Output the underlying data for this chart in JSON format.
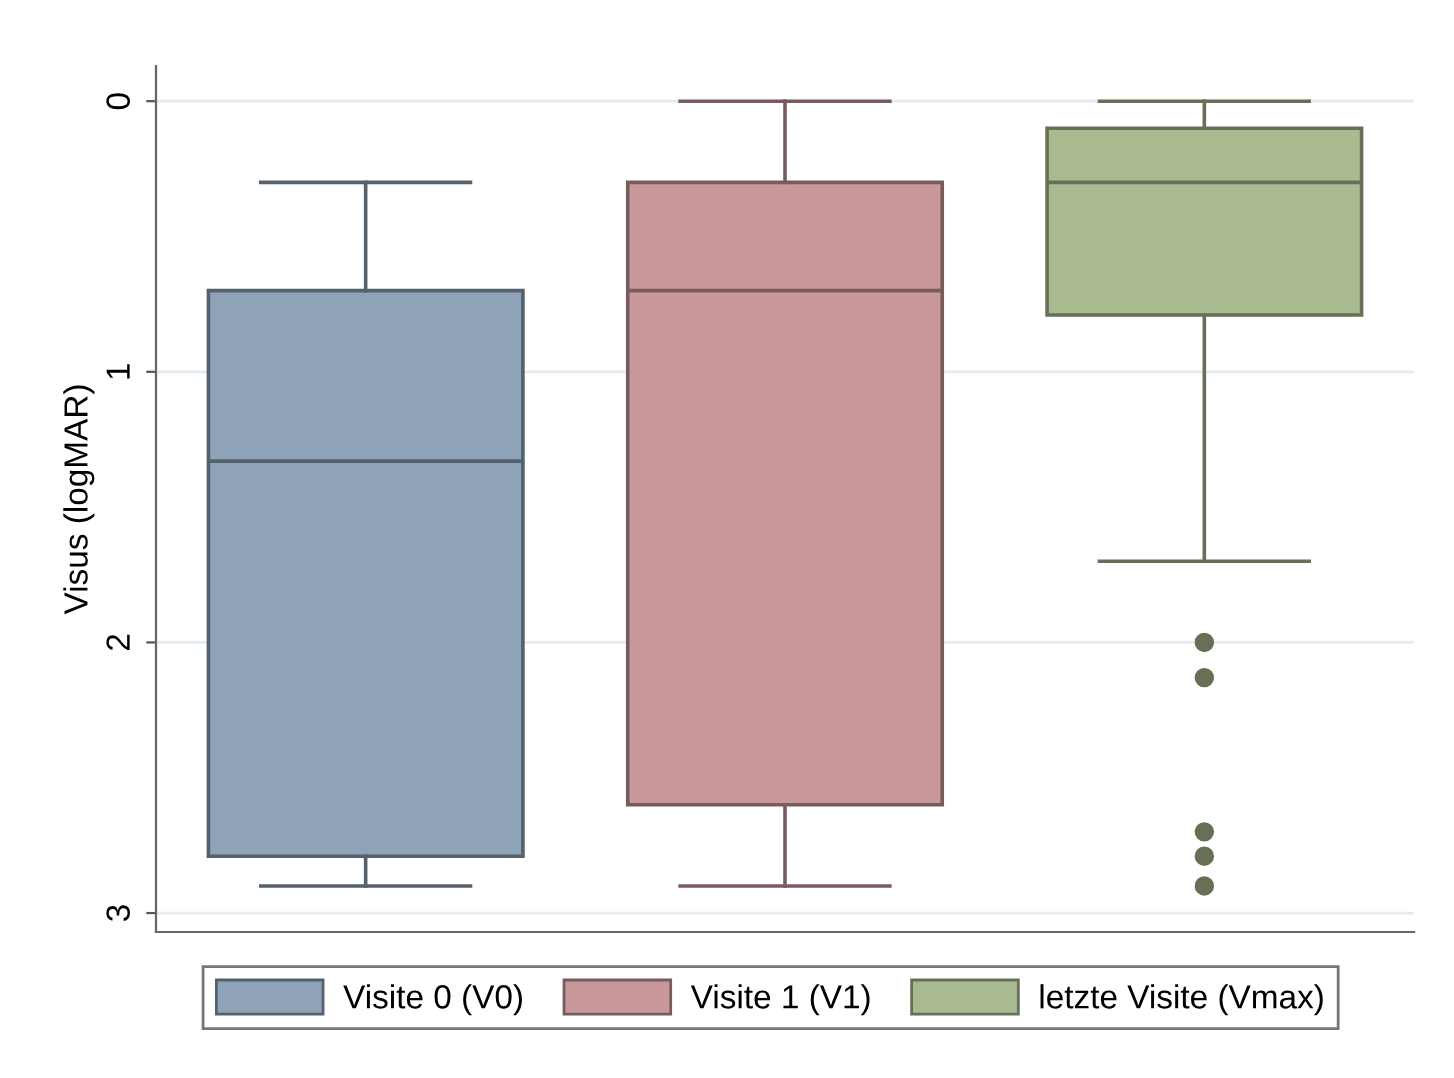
{
  "chart_data": {
    "type": "box",
    "ylabel": "Visus (logMAR)",
    "categories": [
      null,
      null,
      null
    ],
    "ylim": [
      3.07,
      -0.13
    ],
    "yticks": [
      0,
      1,
      2,
      3
    ],
    "grid": "y",
    "legend": "bottom",
    "tick_labels": "y",
    "series": [
      {
        "name": "Visite 0 (V0)",
        "color": "#8ea3b8",
        "boxes": [
          {
            "low": 0.3,
            "q1": 0.7,
            "median": 1.33,
            "q3": 2.79,
            "high": 2.9
          },
          null,
          null
        ]
      },
      {
        "name": "Visite 1 (V1)",
        "color": "#c9989b",
        "boxes": [
          null,
          {
            "low": 0,
            "q1": 0.3,
            "median": 0.7,
            "q3": 2.6,
            "high": 2.9
          },
          null
        ]
      },
      {
        "name": "letzte Visite (Vmax)",
        "color": "#a9ba91",
        "boxes": [
          null,
          null,
          {
            "low": 0,
            "q1": 0.1,
            "median": 0.3,
            "q3": 0.79,
            "high": 1.7,
            "outliers": [
              2.0,
              2.13,
              2.7,
              2.79,
              2.9
            ]
          }
        ]
      }
    ]
  }
}
